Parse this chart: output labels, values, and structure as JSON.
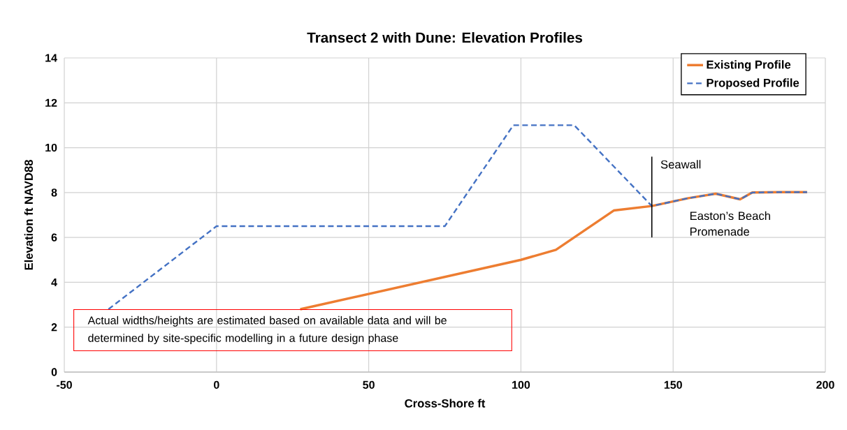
{
  "chart_data": {
    "type": "line",
    "title": "Transect 2 with Dune: Elevation Profiles",
    "xlabel": "Cross-Shore ft",
    "ylabel": "Elevation ft NAVD88",
    "xlim": [
      -50,
      200
    ],
    "ylim": [
      0,
      14
    ],
    "xticks": [
      -50,
      0,
      50,
      100,
      150,
      200
    ],
    "yticks": [
      0,
      2,
      4,
      6,
      8,
      10,
      12,
      14
    ],
    "grid": true,
    "legend": "top right",
    "marker": "none",
    "series": [
      {
        "name": "Existing Profile",
        "color": "#ed7d31",
        "line_style": "solid",
        "x": [
          27.5,
          100,
          111.5,
          130.5,
          143,
          155,
          164,
          172,
          176,
          185,
          194
        ],
        "values": [
          2.8,
          5.0,
          5.45,
          7.2,
          7.4,
          7.75,
          7.95,
          7.7,
          8.0,
          8.02,
          8.02
        ]
      },
      {
        "name": "Proposed Profile",
        "color": "#4472c4",
        "line_style": "dashed",
        "x": [
          -35.5,
          0,
          75,
          97.5,
          117.5,
          143,
          155,
          164,
          172,
          176,
          185,
          194
        ],
        "values": [
          2.8,
          6.5,
          6.5,
          11.0,
          11.0,
          7.4,
          7.75,
          7.95,
          7.7,
          8.0,
          8.02,
          8.02
        ]
      },
      {
        "color": "#000000",
        "line_style": "solid",
        "x": [
          143,
          143
        ],
        "values": [
          6.0,
          9.6
        ]
      }
    ],
    "annotations": [
      {
        "text": "Seawall",
        "x": 143,
        "y": 9.6
      },
      "Easton’s Beach Promenade",
      "Actual widths/heights are estimated based on available data and will be determined by site-specific modelling in a future design phase"
    ]
  }
}
